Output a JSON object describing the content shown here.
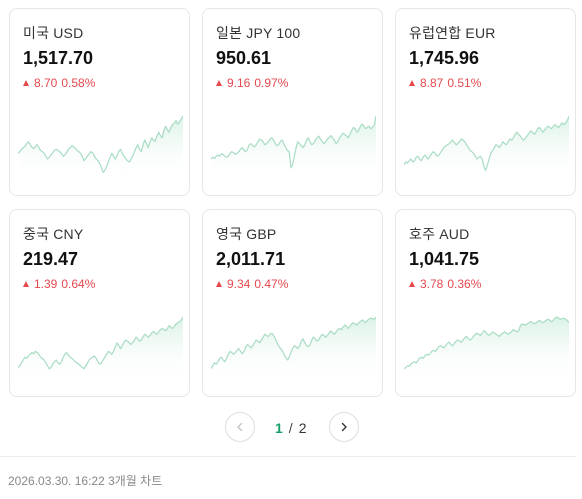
{
  "colors": {
    "accent_green": "#1aa16b",
    "up_red": "#e5484d",
    "chart_line": "#a8dcc3",
    "chart_fill": "#d8f1e4"
  },
  "cards": [
    {
      "name": "미국 USD",
      "price": "1,517.70",
      "change": "8.70",
      "change_pct": "0.58%",
      "direction": "up",
      "trend": [
        0.35,
        0.38,
        0.42,
        0.45,
        0.47,
        0.52,
        0.55,
        0.5,
        0.46,
        0.43,
        0.47,
        0.5,
        0.45,
        0.4,
        0.38,
        0.35,
        0.3,
        0.25,
        0.28,
        0.32,
        0.36,
        0.4,
        0.42,
        0.4,
        0.38,
        0.35,
        0.3,
        0.32,
        0.36,
        0.42,
        0.45,
        0.48,
        0.46,
        0.44,
        0.4,
        0.38,
        0.35,
        0.3,
        0.22,
        0.26,
        0.3,
        0.34,
        0.38,
        0.36,
        0.3,
        0.25,
        0.22,
        0.18,
        0.1,
        0.02,
        0.05,
        0.12,
        0.2,
        0.28,
        0.35,
        0.3,
        0.25,
        0.3,
        0.38,
        0.42,
        0.35,
        0.3,
        0.26,
        0.22,
        0.2,
        0.24,
        0.3,
        0.38,
        0.45,
        0.5,
        0.42,
        0.38,
        0.5,
        0.58,
        0.52,
        0.45,
        0.55,
        0.62,
        0.58,
        0.56,
        0.65,
        0.72,
        0.66,
        0.62,
        0.75,
        0.82,
        0.76,
        0.72,
        0.8,
        0.85,
        0.88,
        0.92,
        0.86,
        0.9,
        0.95,
        1.0
      ]
    },
    {
      "name": "일본 JPY 100",
      "price": "950.61",
      "change": "9.16",
      "change_pct": "0.97%",
      "direction": "up",
      "trend": [
        0.25,
        0.28,
        0.26,
        0.3,
        0.32,
        0.3,
        0.34,
        0.33,
        0.3,
        0.28,
        0.3,
        0.35,
        0.38,
        0.36,
        0.33,
        0.35,
        0.38,
        0.42,
        0.45,
        0.4,
        0.38,
        0.42,
        0.5,
        0.52,
        0.48,
        0.46,
        0.5,
        0.55,
        0.6,
        0.58,
        0.55,
        0.5,
        0.52,
        0.55,
        0.6,
        0.62,
        0.58,
        0.52,
        0.48,
        0.5,
        0.56,
        0.58,
        0.52,
        0.45,
        0.4,
        0.38,
        0.1,
        0.15,
        0.3,
        0.45,
        0.55,
        0.52,
        0.48,
        0.45,
        0.5,
        0.58,
        0.62,
        0.55,
        0.5,
        0.52,
        0.58,
        0.62,
        0.65,
        0.6,
        0.55,
        0.52,
        0.55,
        0.6,
        0.62,
        0.66,
        0.62,
        0.58,
        0.52,
        0.55,
        0.62,
        0.66,
        0.7,
        0.68,
        0.65,
        0.62,
        0.68,
        0.75,
        0.8,
        0.78,
        0.72,
        0.75,
        0.82,
        0.86,
        0.82,
        0.78,
        0.8,
        0.82,
        0.78,
        0.8,
        0.85,
        1.0
      ]
    },
    {
      "name": "유럽연합 EUR",
      "price": "1,745.96",
      "change": "8.87",
      "change_pct": "0.51%",
      "direction": "up",
      "trend": [
        0.15,
        0.2,
        0.18,
        0.22,
        0.25,
        0.2,
        0.22,
        0.28,
        0.3,
        0.25,
        0.22,
        0.28,
        0.32,
        0.28,
        0.25,
        0.3,
        0.35,
        0.38,
        0.34,
        0.3,
        0.32,
        0.36,
        0.4,
        0.45,
        0.48,
        0.5,
        0.52,
        0.55,
        0.58,
        0.54,
        0.5,
        0.52,
        0.56,
        0.6,
        0.58,
        0.55,
        0.5,
        0.45,
        0.4,
        0.38,
        0.35,
        0.3,
        0.25,
        0.28,
        0.3,
        0.25,
        0.12,
        0.05,
        0.15,
        0.25,
        0.35,
        0.4,
        0.45,
        0.5,
        0.48,
        0.45,
        0.5,
        0.55,
        0.52,
        0.5,
        0.55,
        0.6,
        0.58,
        0.62,
        0.68,
        0.72,
        0.68,
        0.65,
        0.6,
        0.58,
        0.62,
        0.66,
        0.7,
        0.74,
        0.72,
        0.68,
        0.72,
        0.78,
        0.8,
        0.76,
        0.72,
        0.76,
        0.8,
        0.82,
        0.8,
        0.78,
        0.82,
        0.85,
        0.82,
        0.8,
        0.84,
        0.88,
        0.85,
        0.88,
        0.92,
        1.0
      ]
    },
    {
      "name": "중국 CNY",
      "price": "219.47",
      "change": "1.39",
      "change_pct": "0.64%",
      "direction": "up",
      "trend": [
        0.12,
        0.15,
        0.2,
        0.25,
        0.3,
        0.28,
        0.32,
        0.35,
        0.38,
        0.36,
        0.4,
        0.38,
        0.35,
        0.3,
        0.28,
        0.25,
        0.2,
        0.15,
        0.1,
        0.12,
        0.18,
        0.22,
        0.25,
        0.2,
        0.18,
        0.22,
        0.3,
        0.35,
        0.38,
        0.34,
        0.3,
        0.28,
        0.25,
        0.22,
        0.2,
        0.18,
        0.15,
        0.12,
        0.1,
        0.15,
        0.2,
        0.25,
        0.28,
        0.3,
        0.32,
        0.28,
        0.22,
        0.18,
        0.2,
        0.25,
        0.3,
        0.35,
        0.4,
        0.38,
        0.35,
        0.4,
        0.48,
        0.55,
        0.5,
        0.45,
        0.5,
        0.56,
        0.6,
        0.58,
        0.55,
        0.52,
        0.55,
        0.6,
        0.65,
        0.62,
        0.58,
        0.6,
        0.66,
        0.7,
        0.68,
        0.65,
        0.68,
        0.72,
        0.75,
        0.72,
        0.7,
        0.74,
        0.78,
        0.8,
        0.78,
        0.76,
        0.8,
        0.85,
        0.82,
        0.8,
        0.84,
        0.88,
        0.9,
        0.92,
        0.95,
        1.0
      ]
    },
    {
      "name": "영국 GBP",
      "price": "2,011.71",
      "change": "9.34",
      "change_pct": "0.47%",
      "direction": "up",
      "trend": [
        0.1,
        0.15,
        0.2,
        0.18,
        0.22,
        0.28,
        0.3,
        0.25,
        0.22,
        0.28,
        0.35,
        0.4,
        0.38,
        0.35,
        0.38,
        0.42,
        0.45,
        0.4,
        0.36,
        0.4,
        0.48,
        0.52,
        0.5,
        0.46,
        0.5,
        0.55,
        0.6,
        0.58,
        0.55,
        0.6,
        0.65,
        0.7,
        0.68,
        0.66,
        0.7,
        0.72,
        0.68,
        0.62,
        0.55,
        0.5,
        0.45,
        0.42,
        0.35,
        0.3,
        0.25,
        0.3,
        0.38,
        0.45,
        0.5,
        0.48,
        0.45,
        0.5,
        0.58,
        0.62,
        0.55,
        0.5,
        0.48,
        0.52,
        0.6,
        0.65,
        0.62,
        0.58,
        0.6,
        0.66,
        0.7,
        0.68,
        0.65,
        0.68,
        0.72,
        0.76,
        0.72,
        0.7,
        0.74,
        0.78,
        0.8,
        0.78,
        0.82,
        0.86,
        0.84,
        0.8,
        0.84,
        0.88,
        0.9,
        0.88,
        0.86,
        0.9,
        0.92,
        0.95,
        0.93,
        0.9,
        0.94,
        0.96,
        0.98,
        0.97,
        0.96,
        1.0
      ]
    },
    {
      "name": "호주 AUD",
      "price": "1,041.75",
      "change": "3.78",
      "change_pct": "0.36%",
      "direction": "up",
      "trend": [
        0.1,
        0.12,
        0.15,
        0.14,
        0.18,
        0.2,
        0.22,
        0.2,
        0.24,
        0.28,
        0.3,
        0.28,
        0.32,
        0.35,
        0.34,
        0.36,
        0.4,
        0.42,
        0.4,
        0.44,
        0.48,
        0.5,
        0.48,
        0.46,
        0.5,
        0.54,
        0.56,
        0.52,
        0.5,
        0.54,
        0.58,
        0.6,
        0.58,
        0.56,
        0.6,
        0.64,
        0.66,
        0.62,
        0.6,
        0.62,
        0.66,
        0.7,
        0.72,
        0.7,
        0.68,
        0.72,
        0.76,
        0.74,
        0.7,
        0.68,
        0.7,
        0.74,
        0.72,
        0.7,
        0.68,
        0.66,
        0.7,
        0.72,
        0.74,
        0.72,
        0.7,
        0.72,
        0.75,
        0.78,
        0.76,
        0.74,
        0.76,
        0.85,
        0.88,
        0.87,
        0.86,
        0.88,
        0.9,
        0.92,
        0.9,
        0.88,
        0.9,
        0.92,
        0.94,
        0.92,
        0.9,
        0.92,
        0.95,
        0.96,
        0.94,
        0.92,
        0.95,
        0.98,
        1.0,
        0.98,
        0.96,
        0.97,
        0.98,
        0.96,
        0.94,
        0.9
      ]
    }
  ],
  "pagination": {
    "current": "1",
    "separator": "/",
    "total": "2",
    "prev_icon": "chevron-left-icon",
    "next_icon": "chevron-right-icon"
  },
  "footer": {
    "text": "2026.03.30. 16:22 3개월 차트"
  }
}
